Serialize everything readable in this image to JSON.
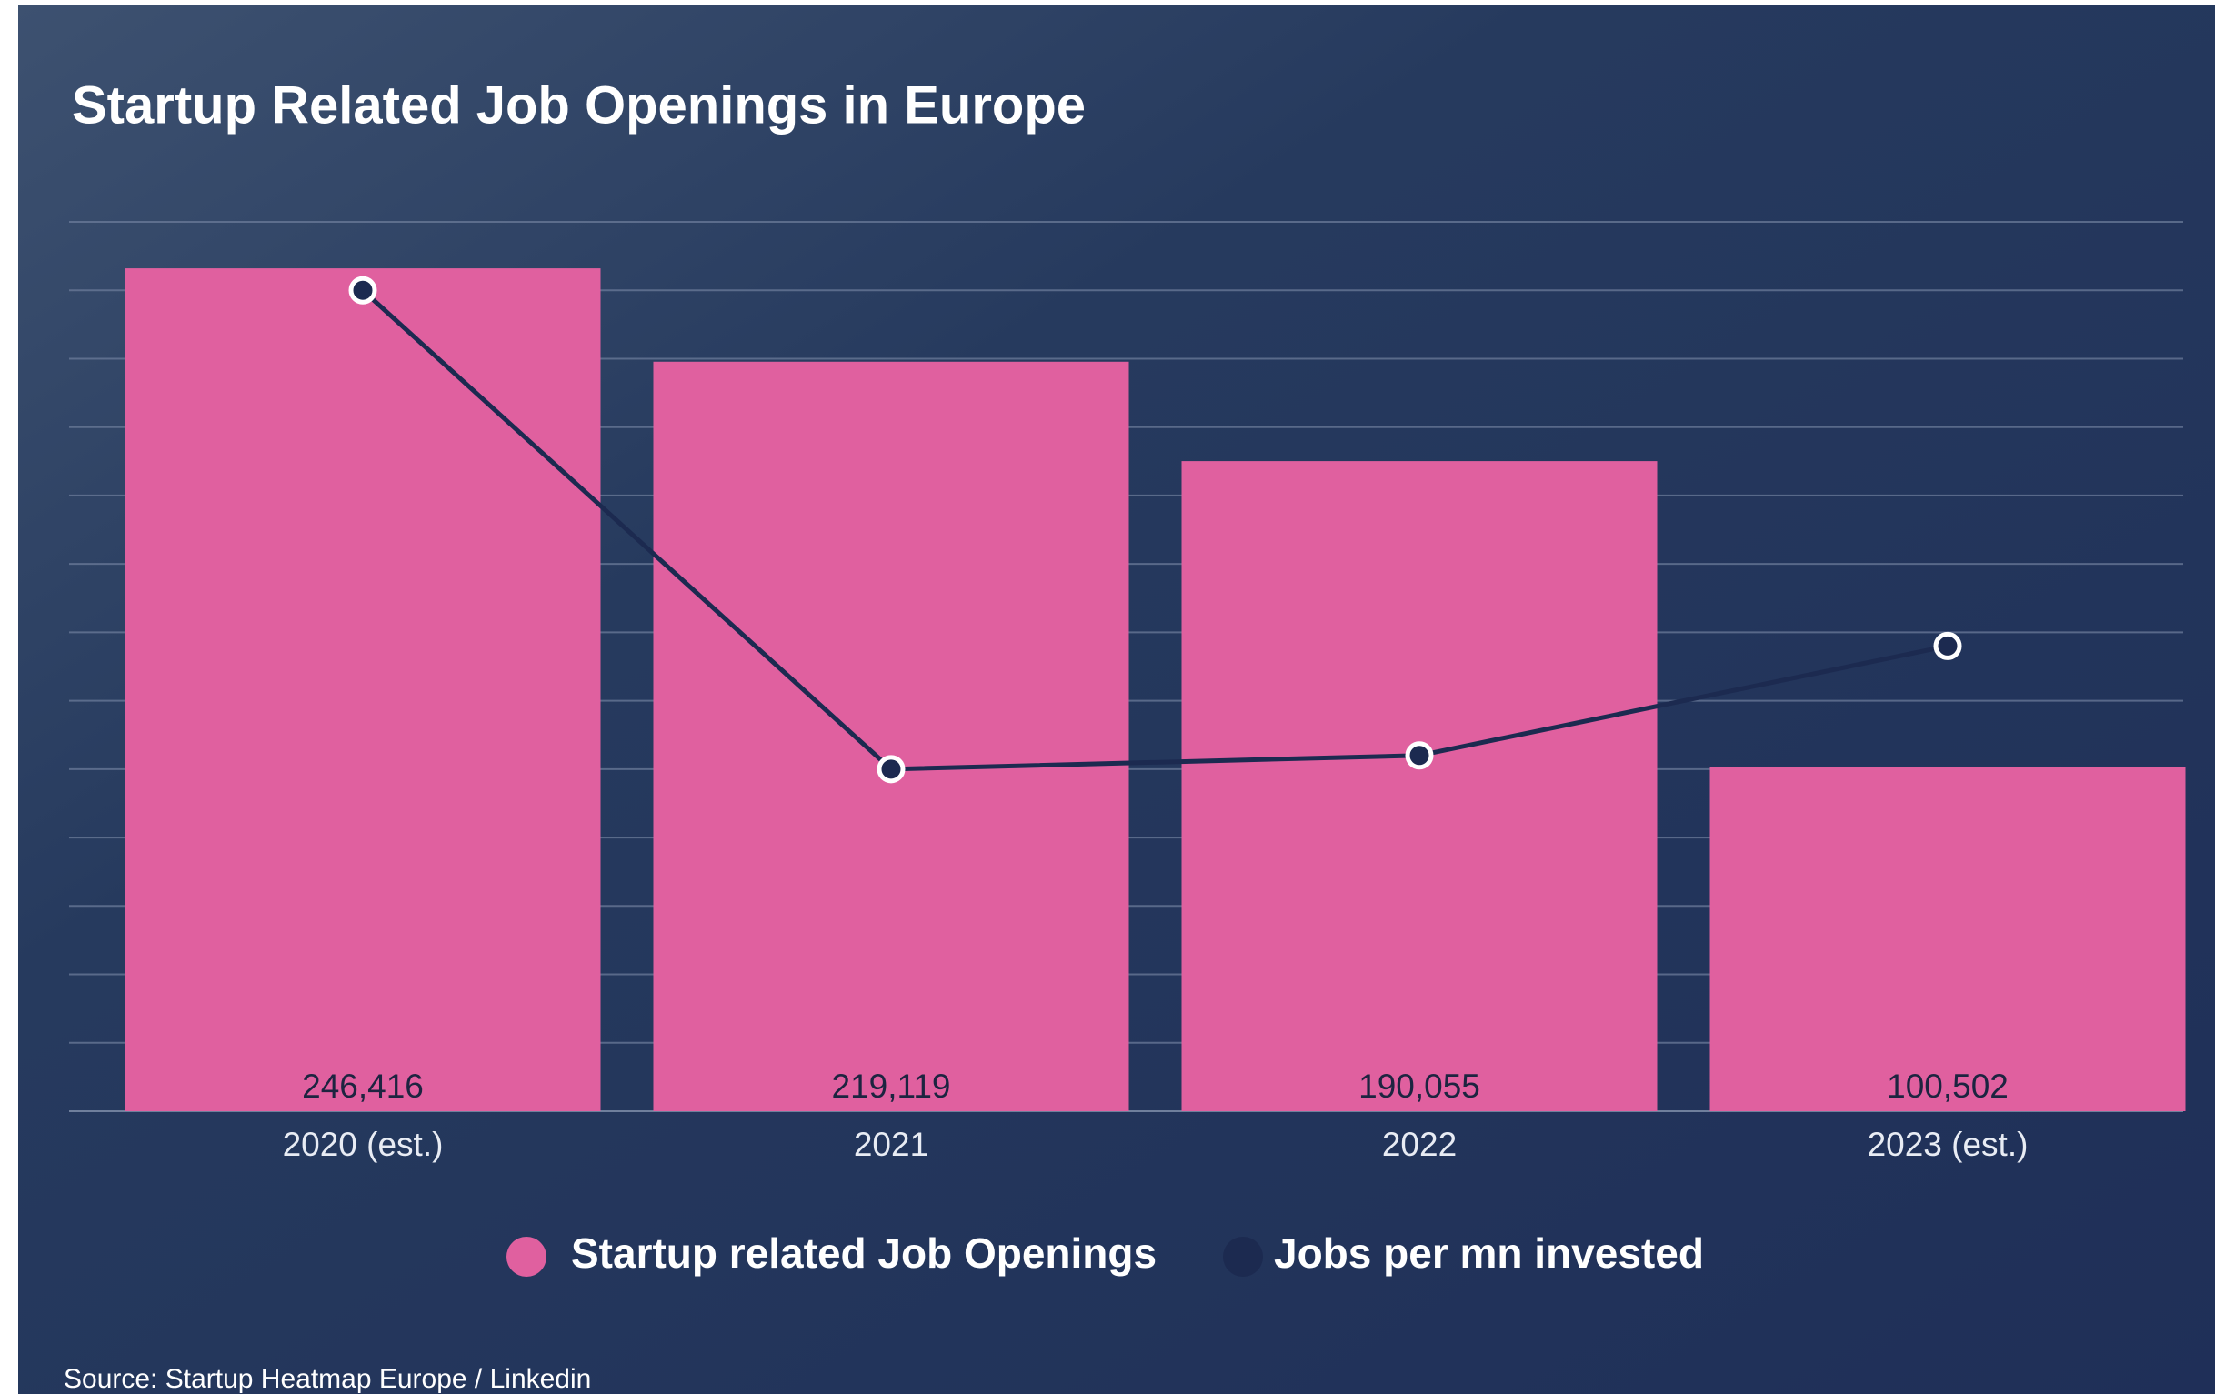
{
  "chart_data": {
    "type": "bar",
    "title": "Startup Related Job Openings in Europe",
    "categories": [
      "2020 (est.)",
      "2021",
      "2022",
      "2023 (est.)"
    ],
    "series": [
      {
        "name": "Startup related Job Openings",
        "color": "#e0609f",
        "values": [
          246416,
          219119,
          190055,
          100502
        ],
        "value_labels": [
          "246,416",
          "219,119",
          "190,055",
          "100,502"
        ]
      },
      {
        "name": "Jobs per mn invested",
        "color": "#1c2a50",
        "type": "line",
        "axis": "y2",
        "values": [
          12.0,
          5.0,
          5.2,
          6.8
        ]
      }
    ],
    "ylim": [
      0,
      260000
    ],
    "yticks": [
      0,
      20000,
      40000,
      60000,
      80000,
      100000,
      120000,
      140000,
      160000,
      180000,
      200000,
      220000,
      240000,
      260000
    ],
    "y2lim": [
      0,
      13
    ],
    "grid": true,
    "source": "Source: Startup Heatmap Europe / Linkedin"
  }
}
